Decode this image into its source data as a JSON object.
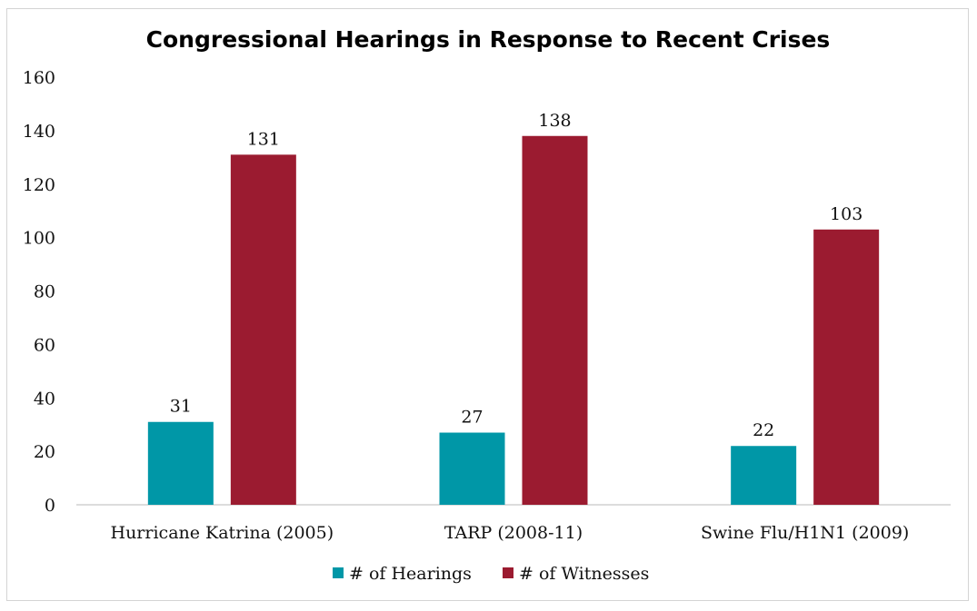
{
  "chart_data": {
    "type": "bar",
    "title": "Congressional Hearings in Response to Recent Crises",
    "categories": [
      "Hurricane Katrina (2005)",
      "TARP (2008-11)",
      "Swine Flu/H1N1 (2009)"
    ],
    "series": [
      {
        "name": "# of Hearings",
        "color": "#0097A7",
        "values": [
          31,
          27,
          22
        ]
      },
      {
        "name": "# of Witnesses",
        "color": "#9B1B30",
        "values": [
          131,
          138,
          103
        ]
      }
    ],
    "ylim": [
      0,
      160
    ],
    "yticks": [
      0,
      20,
      40,
      60,
      80,
      100,
      120,
      140,
      160
    ],
    "grid": false,
    "legend_position": "bottom"
  }
}
